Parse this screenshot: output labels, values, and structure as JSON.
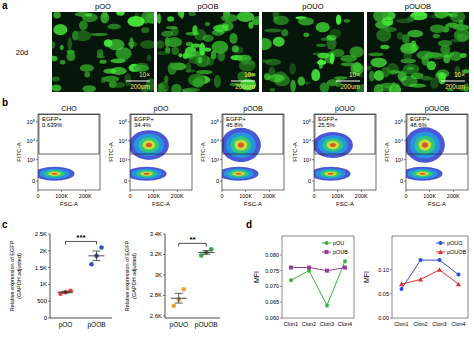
{
  "panel_labels": [
    "a",
    "b",
    "c",
    "d"
  ],
  "images": {
    "row_label": "20d",
    "titles": [
      "pOO",
      "pOOB",
      "pOUO",
      "pOUOB"
    ],
    "magnification": "10×",
    "scale_bar": "200um"
  },
  "chart_data": [
    {
      "type": "flow",
      "title": "CHO",
      "x_label": "FSC-A",
      "y_label": "FITC-A",
      "xlim": [
        0,
        262144
      ],
      "xticks": [
        0,
        {
          "value": 100000,
          "label": "100K"
        },
        {
          "value": 200000,
          "label": "200K"
        }
      ],
      "ylim": [
        -200,
        262144
      ],
      "yticks": [
        0,
        {
          "value": 1000,
          "label": "10³"
        },
        {
          "value": 10000,
          "label": "10⁴"
        },
        {
          "value": 100000,
          "label": "10⁵"
        }
      ],
      "gate": {
        "name": "EGFP+",
        "value": 0.639,
        "value_label": "0.639%",
        "x": [
          4000,
          258000
        ],
        "y": [
          2000,
          250000
        ]
      }
    },
    {
      "type": "flow",
      "title": "pOO",
      "x_label": "FSC-A",
      "y_label": "FITC-A",
      "xlim": [
        0,
        262144
      ],
      "xticks": [
        0,
        {
          "value": 100000,
          "label": "100K"
        },
        {
          "value": 200000,
          "label": "200K"
        }
      ],
      "ylim": [
        -200,
        262144
      ],
      "yticks": [
        0,
        {
          "value": 1000,
          "label": "10³"
        },
        {
          "value": 10000,
          "label": "10⁴"
        },
        {
          "value": 100000,
          "label": "10⁵"
        }
      ],
      "gate": {
        "name": "EGFP+",
        "value": 34.4,
        "value_label": "34.4%",
        "x": [
          4000,
          258000
        ],
        "y": [
          2000,
          250000
        ]
      }
    },
    {
      "type": "flow",
      "title": "pOOB",
      "x_label": "FSC-A",
      "y_label": "FITC-A",
      "xlim": [
        0,
        262144
      ],
      "xticks": [
        0,
        {
          "value": 100000,
          "label": "100K"
        },
        {
          "value": 200000,
          "label": "200K"
        }
      ],
      "ylim": [
        -200,
        262144
      ],
      "yticks": [
        0,
        {
          "value": 1000,
          "label": "10³"
        },
        {
          "value": 10000,
          "label": "10⁴"
        },
        {
          "value": 100000,
          "label": "10⁵"
        }
      ],
      "gate": {
        "name": "EGFP+",
        "value": 45.8,
        "value_label": "45.8%",
        "x": [
          4000,
          258000
        ],
        "y": [
          2000,
          250000
        ]
      }
    },
    {
      "type": "flow",
      "title": "pOUO",
      "x_label": "FSC-A",
      "y_label": "FITC-A",
      "xlim": [
        0,
        262144
      ],
      "xticks": [
        0,
        {
          "value": 100000,
          "label": "100K"
        },
        {
          "value": 200000,
          "label": "200K"
        }
      ],
      "ylim": [
        -200,
        262144
      ],
      "yticks": [
        0,
        {
          "value": 1000,
          "label": "10³"
        },
        {
          "value": 10000,
          "label": "10⁴"
        },
        {
          "value": 100000,
          "label": "10⁵"
        }
      ],
      "gate": {
        "name": "EGFP+",
        "value": 25.5,
        "value_label": "25.5%",
        "x": [
          4000,
          258000
        ],
        "y": [
          2000,
          250000
        ]
      }
    },
    {
      "type": "flow",
      "title": "pOUOB",
      "x_label": "FSC-A",
      "y_label": "FITC-A",
      "xlim": [
        0,
        262144
      ],
      "xticks": [
        0,
        {
          "value": 100000,
          "label": "100K"
        },
        {
          "value": 200000,
          "label": "200K"
        }
      ],
      "ylim": [
        -200,
        262144
      ],
      "yticks": [
        0,
        {
          "value": 1000,
          "label": "10³"
        },
        {
          "value": 10000,
          "label": "10⁴"
        },
        {
          "value": 100000,
          "label": "10⁵"
        }
      ],
      "gate": {
        "name": "EGFP+",
        "value": 48.6,
        "value_label": "48.6%",
        "x": [
          4000,
          258000
        ],
        "y": [
          2000,
          250000
        ]
      }
    },
    {
      "type": "dot",
      "y_label": [
        "Relative expression of EGFP",
        "(GAPDH adjusted)"
      ],
      "categories": [
        "pOO",
        "pOOB"
      ],
      "colors": [
        "#e8413c",
        "#2f54c9"
      ],
      "values": [
        [
          720,
          770,
          810
        ],
        [
          1600,
          1850,
          2100
        ]
      ],
      "means": [
        767,
        1850
      ],
      "errors": [
        26,
        144
      ],
      "ylim": [
        0,
        2500
      ],
      "yticks": [
        0,
        500,
        {
          "value": 1000,
          "label": "1K"
        },
        {
          "value": 1500,
          "label": "1.5K"
        },
        {
          "value": 2000,
          "label": "2K"
        },
        {
          "value": 2500,
          "label": "2.5K"
        }
      ],
      "annotation": "***"
    },
    {
      "type": "dot",
      "y_label": [
        "Relative expression of EGFP",
        "(GAPDH adjusted)"
      ],
      "categories": [
        "pOUO",
        "pOUOB"
      ],
      "colors": [
        "#f0a030",
        "#3aa84a"
      ],
      "values": [
        [
          2700,
          2760,
          2860
        ],
        [
          3190,
          3220,
          3250
        ]
      ],
      "means": [
        2773,
        3220
      ],
      "errors": [
        47,
        17
      ],
      "ylim": [
        2580,
        3400
      ],
      "yticks": [
        {
          "value": 2600,
          "label": "2.6K"
        },
        {
          "value": 2800,
          "label": "2.8K"
        },
        {
          "value": 3000,
          "label": "3K"
        },
        {
          "value": 3200,
          "label": "3.2K"
        },
        {
          "value": 3400,
          "label": "3.4K"
        }
      ],
      "annotation": "**"
    },
    {
      "type": "line",
      "y_label": "MFI",
      "categories": [
        "Clon1",
        "Clon2",
        "Clon3",
        "Clon4"
      ],
      "ylim": [
        0.06,
        0.086
      ],
      "yticks": [
        {
          "value": 0.06,
          "label": "0.060"
        },
        {
          "value": 0.065,
          "label": "0.065"
        },
        {
          "value": 0.07,
          "label": "0.070"
        },
        {
          "value": 0.075,
          "label": "0.075"
        },
        {
          "value": 0.08,
          "label": "0.080"
        }
      ],
      "legend": "top-right",
      "series": [
        {
          "name": "pOU",
          "color": "#35b535",
          "marker": "circle",
          "values": [
            0.072,
            0.075,
            0.064,
            0.078
          ]
        },
        {
          "name": "pOUB",
          "color": "#9a3c9e",
          "marker": "square",
          "values": [
            0.076,
            0.076,
            0.075,
            0.076
          ]
        }
      ]
    },
    {
      "type": "line",
      "y_label": "MFI",
      "categories": [
        "Clon1",
        "Clon2",
        "Clon3",
        "Clon4"
      ],
      "ylim": [
        0,
        0.17
      ],
      "yticks": [
        {
          "value": 0,
          "label": "0.00"
        },
        {
          "value": 0.05,
          "label": "0.05"
        },
        {
          "value": 0.1,
          "label": "0.10"
        }
      ],
      "legend": "top-right",
      "series": [
        {
          "name": "pOUO",
          "color": "#2a4fd8",
          "marker": "circle",
          "values": [
            0.06,
            0.12,
            0.12,
            0.09
          ]
        },
        {
          "name": "pOUOB",
          "color": "#e03030",
          "marker": "triangle",
          "values": [
            0.07,
            0.08,
            0.1,
            0.07
          ]
        }
      ]
    }
  ]
}
